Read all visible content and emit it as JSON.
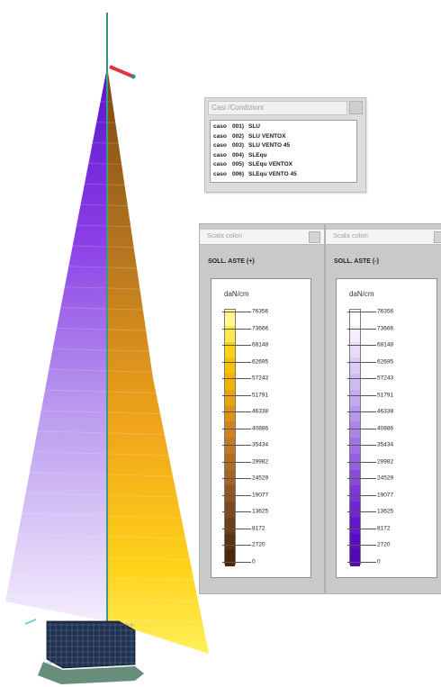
{
  "load_cases": {
    "title": "Casi /Condizioni",
    "rows": [
      {
        "word": "caso",
        "num": "001)",
        "name": "SLU"
      },
      {
        "word": "caso",
        "num": "002)",
        "name": "SLU VENTOX"
      },
      {
        "word": "caso",
        "num": "003)",
        "name": "SLU VENTO 45"
      },
      {
        "word": "caso",
        "num": "004)",
        "name": "SLEqu"
      },
      {
        "word": "caso",
        "num": "005)",
        "name": "SLEqu VENTOX"
      },
      {
        "word": "caso",
        "num": "006)",
        "name": "SLEqu VENTO 45"
      }
    ]
  },
  "scale_positive": {
    "header": "Scala colori",
    "heading": "SOLL. ASTE (+)",
    "unit": "daN/cm",
    "labels": [
      "76356",
      "73666",
      "68148",
      "62695",
      "57243",
      "51791",
      "46338",
      "40886",
      "35434",
      "29982",
      "24529",
      "19077",
      "13625",
      "8172",
      "2720",
      "0"
    ],
    "colors": [
      "#fffb8c",
      "#ffe84a",
      "#ffd21a",
      "#f9c200",
      "#f2b300",
      "#e8a313",
      "#de9218",
      "#d0841f",
      "#c27924",
      "#b36e26",
      "#a36426",
      "#905722",
      "#7d4a1e",
      "#6b3f18",
      "#5a3413",
      "#4a2a0f"
    ]
  },
  "scale_negative": {
    "header": "Scala colori",
    "heading": "SOLL. ASTE (-)",
    "unit": "daN/cm",
    "labels": [
      "76356",
      "73666",
      "68148",
      "62695",
      "57243",
      "51791",
      "46338",
      "40886",
      "35434",
      "29982",
      "24529",
      "19077",
      "13625",
      "8172",
      "2720",
      "0"
    ],
    "colors": [
      "#ffffff",
      "#f4eefc",
      "#e8dcf9",
      "#dccbf5",
      "#d0baf2",
      "#c4a9ee",
      "#b897ea",
      "#ac85e6",
      "#a073e2",
      "#945fde",
      "#884bd9",
      "#7c37d4",
      "#7026cf",
      "#6417c8",
      "#5a0cc0",
      "#5208b4"
    ]
  }
}
